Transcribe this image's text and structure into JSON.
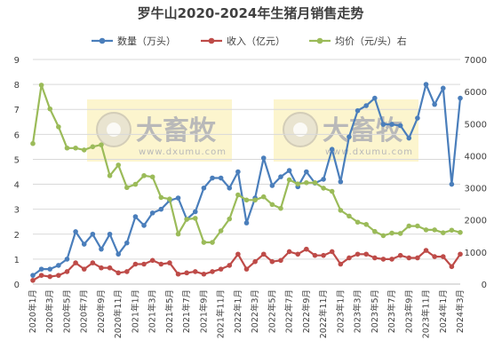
{
  "chart_data": {
    "type": "line",
    "title": "罗牛山2020-2024年生猪月销售走势",
    "categories": [
      "2020年1月",
      "2020年2月",
      "2020年3月",
      "2020年4月",
      "2020年5月",
      "2020年6月",
      "2020年7月",
      "2020年8月",
      "2020年9月",
      "2020年10月",
      "2020年11月",
      "2020年12月",
      "2021年1月",
      "2021年2月",
      "2021年3月",
      "2021年4月",
      "2021年5月",
      "2021年6月",
      "2021年7月",
      "2021年8月",
      "2021年9月",
      "2021年10月",
      "2021年11月",
      "2021年12月",
      "2022年1月",
      "2022年2月",
      "2022年3月",
      "2022年4月",
      "2022年5月",
      "2022年6月",
      "2022年7月",
      "2022年8月",
      "2022年9月",
      "2022年10月",
      "2022年11月",
      "2022年12月",
      "2023年1月",
      "2023年2月",
      "2023年3月",
      "2023年4月",
      "2023年5月",
      "2023年6月",
      "2023年7月",
      "2023年8月",
      "2023年9月",
      "2023年10月",
      "2023年11月",
      "2023年12月",
      "2024年1月",
      "2024年2月",
      "2024年3月"
    ],
    "x_tick_labels": [
      "2020年1月",
      "2020年3月",
      "2020年5月",
      "2020年7月",
      "2020年9月",
      "2020年11月",
      "2021年1月",
      "2021年3月",
      "2021年5月",
      "2021年7月",
      "2021年9月",
      "2021年11月",
      "2022年1月",
      "2022年3月",
      "2022年5月",
      "2022年7月",
      "2022年9月",
      "2022年11月",
      "2023年1月",
      "2023年3月",
      "2023年5月",
      "2023年7月",
      "2023年9月",
      "2023年11月",
      "2024年1月",
      "2024年3月"
    ],
    "y_left": {
      "min": 0,
      "max": 9,
      "ticks": [
        0,
        1,
        2,
        3,
        4,
        5,
        6,
        7,
        8,
        9
      ]
    },
    "y_right": {
      "min": 0,
      "max": 7000,
      "ticks": [
        0,
        1000,
        2000,
        3000,
        4000,
        5000,
        6000,
        7000
      ]
    },
    "legend_position": "top",
    "grid": "horizontal",
    "series": [
      {
        "name": "数量（万头）",
        "axis": "left",
        "color": "#4a7ebb",
        "values": [
          0.35,
          0.6,
          0.6,
          0.75,
          1.0,
          2.1,
          1.6,
          2.0,
          1.4,
          2.0,
          1.2,
          1.65,
          2.7,
          2.35,
          2.85,
          3.0,
          3.35,
          3.45,
          2.6,
          2.9,
          3.85,
          4.25,
          4.25,
          3.85,
          4.5,
          2.45,
          3.45,
          5.05,
          3.95,
          4.3,
          4.55,
          3.9,
          4.5,
          4.05,
          4.2,
          5.4,
          4.1,
          5.9,
          6.95,
          7.15,
          7.45,
          6.4,
          6.4,
          6.35,
          5.85,
          6.65,
          8.0,
          7.2,
          7.85,
          4.0,
          7.45
        ]
      },
      {
        "name": "收入（亿元）",
        "axis": "left",
        "color": "#be4b48",
        "values": [
          0.15,
          0.35,
          0.3,
          0.35,
          0.5,
          0.85,
          0.6,
          0.85,
          0.65,
          0.65,
          0.45,
          0.5,
          0.8,
          0.8,
          0.95,
          0.8,
          0.85,
          0.4,
          0.45,
          0.5,
          0.4,
          0.5,
          0.6,
          0.75,
          1.2,
          0.6,
          0.9,
          1.2,
          0.9,
          0.95,
          1.3,
          1.2,
          1.4,
          1.15,
          1.15,
          1.3,
          0.8,
          1.05,
          1.2,
          1.2,
          1.05,
          1.0,
          1.0,
          1.15,
          1.05,
          1.05,
          1.35,
          1.1,
          1.1,
          0.7,
          1.2
        ]
      },
      {
        "name": "均价（元/头）右",
        "axis": "right",
        "color": "#9bbb59",
        "values": [
          4380,
          6200,
          5460,
          4900,
          4240,
          4240,
          4180,
          4280,
          4340,
          3380,
          3710,
          3010,
          3110,
          3380,
          3340,
          2700,
          2650,
          1560,
          2020,
          2050,
          1300,
          1300,
          1660,
          2030,
          2780,
          2620,
          2620,
          2720,
          2480,
          2360,
          3250,
          3120,
          3160,
          3160,
          2990,
          2890,
          2300,
          2120,
          1930,
          1860,
          1640,
          1510,
          1590,
          1580,
          1810,
          1810,
          1690,
          1690,
          1600,
          1680,
          1610
        ]
      }
    ]
  },
  "watermark": {
    "text": "大畜牧",
    "sub": "www.dxumu.com"
  }
}
